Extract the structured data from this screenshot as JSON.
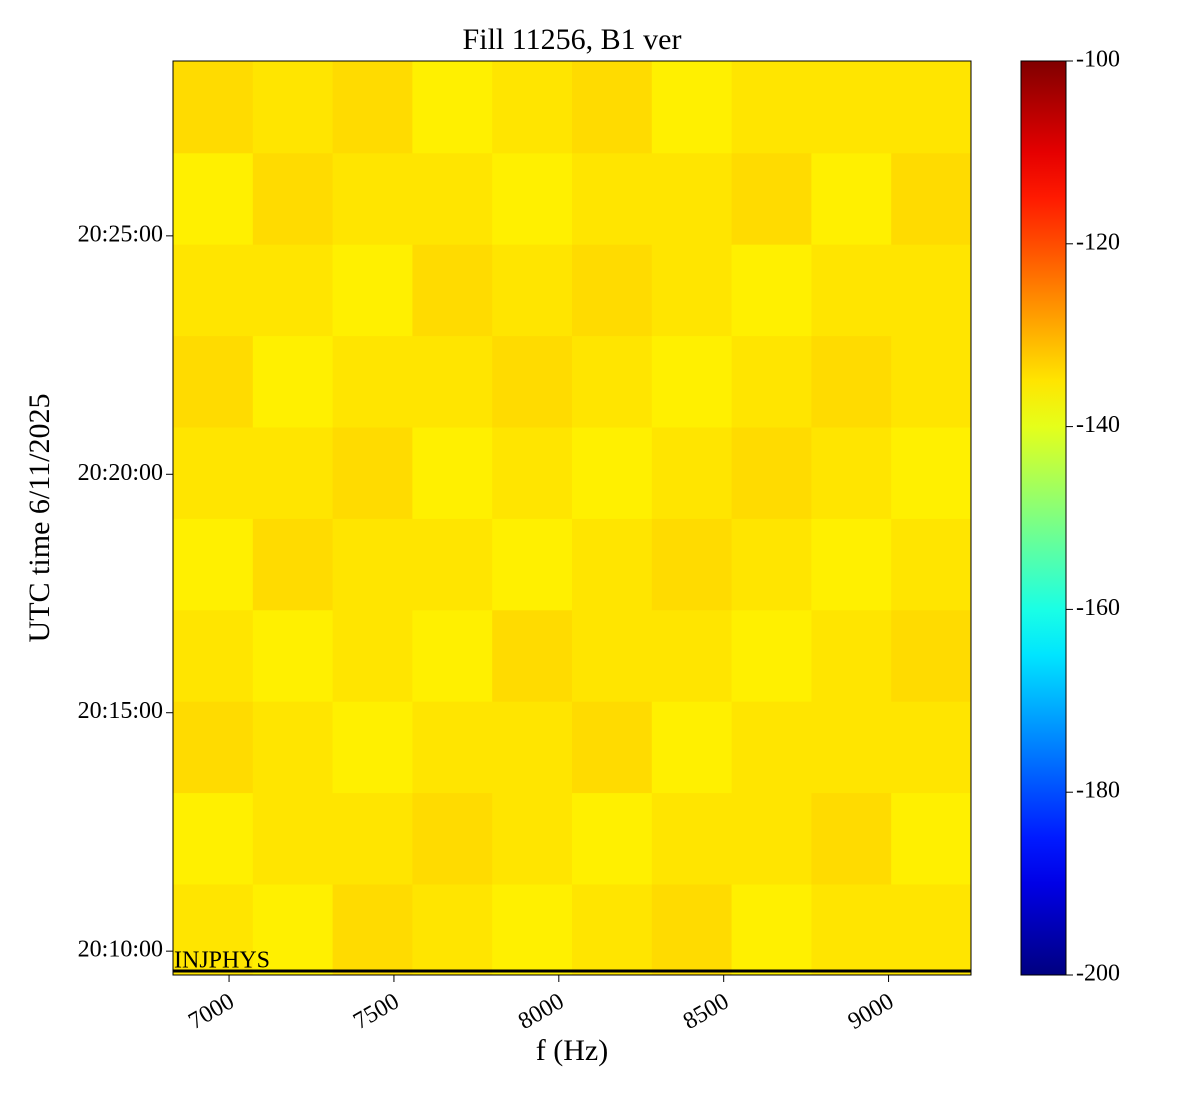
{
  "chart_data": {
    "type": "heatmap",
    "title": "Fill 11256, B1 ver",
    "x_label": "f (Hz)",
    "y_label": "UTC time 6/11/2025",
    "x": [
      6951,
      7193,
      7435,
      7677,
      7919,
      8161,
      8403,
      8645,
      8887,
      9129
    ],
    "y": [
      "20:10:27",
      "20:12:22",
      "20:14:17",
      "20:16:12",
      "20:18:07",
      "20:20:02",
      "20:21:57",
      "20:23:52",
      "20:25:47",
      "20:27:42"
    ],
    "z": [
      [
        -135,
        -136,
        -134,
        -135,
        -136,
        -135,
        -134,
        -136,
        -135,
        -135
      ],
      [
        -136,
        -135,
        -135,
        -134,
        -135,
        -136,
        -135,
        -135,
        -134,
        -136
      ],
      [
        -134,
        -135,
        -136,
        -135,
        -135,
        -134,
        -136,
        -135,
        -135,
        -135
      ],
      [
        -135,
        -136,
        -135,
        -136,
        -134,
        -135,
        -135,
        -136,
        -135,
        -134
      ],
      [
        -136,
        -134,
        -135,
        -135,
        -136,
        -135,
        -134,
        -135,
        -136,
        -135
      ],
      [
        -135,
        -135,
        -134,
        -136,
        -135,
        -136,
        -135,
        -134,
        -135,
        -136
      ],
      [
        -134,
        -136,
        -135,
        -135,
        -134,
        -135,
        -136,
        -135,
        -134,
        -135
      ],
      [
        -135,
        -135,
        -136,
        -134,
        -135,
        -134,
        -135,
        -136,
        -135,
        -135
      ],
      [
        -136,
        -134,
        -135,
        -135,
        -136,
        -135,
        -135,
        -134,
        -136,
        -134
      ],
      [
        -134,
        -135,
        -134,
        -136,
        -135,
        -134,
        -136,
        -135,
        -135,
        -135
      ]
    ],
    "colormap": "jet",
    "xlim": [
      6830,
      9250
    ],
    "xticks": [
      7000,
      7500,
      8000,
      8500,
      9000
    ],
    "ylim": [
      "20:09:30",
      "20:28:40"
    ],
    "yticks": [
      "20:10:00",
      "20:15:00",
      "20:20:00",
      "20:25:00"
    ],
    "clim": [
      -200,
      -100
    ],
    "cticks": [
      -200,
      -180,
      -160,
      -140,
      -120,
      -100
    ],
    "annotation": {
      "text": "INJPHYS",
      "time": "20:09:35",
      "color": "#000000"
    }
  }
}
